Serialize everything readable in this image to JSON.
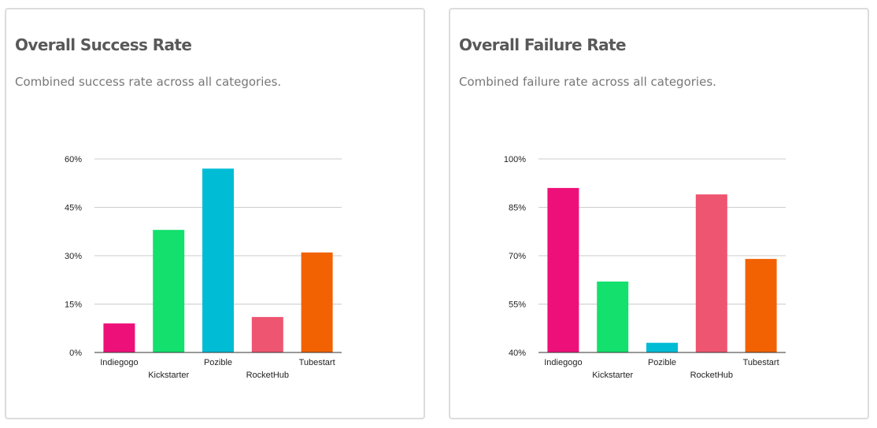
{
  "cards": [
    {
      "title": "Overall Success Rate",
      "subtitle": "Combined success rate across all categories."
    },
    {
      "title": "Overall Failure Rate",
      "subtitle": "Combined failure rate across all categories."
    }
  ],
  "chart_data": [
    {
      "type": "bar",
      "title": "Overall Success Rate",
      "subtitle": "Combined success rate across all categories.",
      "categories": [
        "Indiegogo",
        "Kickstarter",
        "Pozible",
        "RocketHub",
        "Tubestart"
      ],
      "values": [
        9,
        38,
        57,
        11,
        31
      ],
      "colors": [
        "#ee1079",
        "#13e06d",
        "#00bcd5",
        "#ee5570",
        "#f26202"
      ],
      "ylim": [
        0,
        60
      ],
      "yticks": [
        0,
        15,
        30,
        45,
        60
      ],
      "ytick_labels": [
        "0%",
        "15%",
        "30%",
        "45%",
        "60%"
      ],
      "xlabel": "",
      "ylabel": "",
      "grid": true,
      "legend": "none"
    },
    {
      "type": "bar",
      "title": "Overall Failure Rate",
      "subtitle": "Combined failure rate across all categories.",
      "categories": [
        "Indiegogo",
        "Kickstarter",
        "Pozible",
        "RocketHub",
        "Tubestart"
      ],
      "values": [
        91,
        62,
        43,
        89,
        69
      ],
      "colors": [
        "#ee1079",
        "#13e06d",
        "#00bcd5",
        "#ee5570",
        "#f26202"
      ],
      "ylim": [
        40,
        100
      ],
      "yticks": [
        40,
        55,
        70,
        85,
        100
      ],
      "ytick_labels": [
        "40%",
        "55%",
        "70%",
        "85%",
        "100%"
      ],
      "xlabel": "",
      "ylabel": "",
      "grid": true,
      "legend": "none"
    }
  ]
}
